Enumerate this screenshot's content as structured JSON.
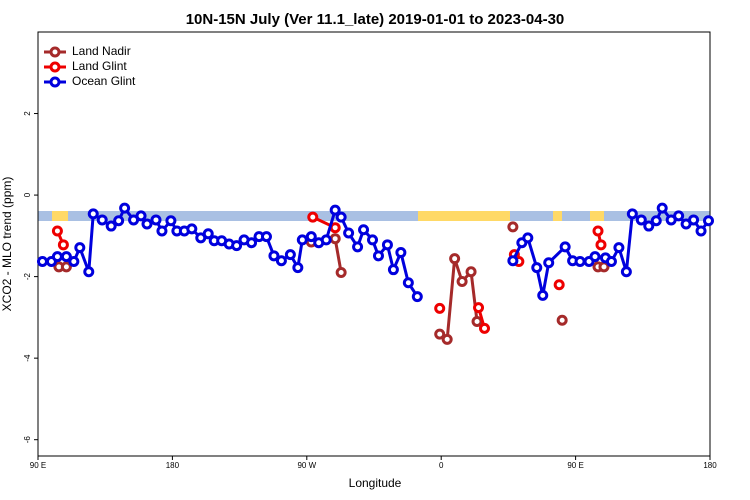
{
  "chart_data": {
    "type": "line",
    "title": "10N-15N July (Ver 11.1_late)   2019-01-01 to 2023-04-30",
    "x_label": "Longitude",
    "y_label": "XCO2 - MLO trend (ppm)",
    "xlim": [
      90,
      540
    ],
    "xticks": [
      {
        "value": 90,
        "label": "90 E"
      },
      {
        "value": 180,
        "label": "180"
      },
      {
        "value": 270,
        "label": "90 W"
      },
      {
        "value": 360,
        "label": "0"
      },
      {
        "value": 450,
        "label": "90 E"
      },
      {
        "value": 540,
        "label": "180"
      }
    ],
    "ylim": [
      -6.4,
      4
    ],
    "yticks": [
      -6,
      -4,
      -2,
      0,
      2
    ],
    "legend": "top-left",
    "series": [
      {
        "name": "Land Nadir",
        "color": "#a52a2a",
        "x": [
          104,
          109,
          null,
          273,
          289,
          293,
          null,
          359,
          364,
          369,
          374,
          380,
          384,
          null,
          408,
          null,
          441,
          null,
          465,
          469
        ],
        "values": [
          -1.76,
          -1.76,
          null,
          -1.15,
          -1.07,
          -1.9,
          null,
          -3.41,
          -3.54,
          -1.56,
          -2.12,
          -1.88,
          -3.1,
          null,
          -0.78,
          null,
          -3.07,
          null,
          -1.76,
          -1.76
        ]
      },
      {
        "name": "Land Glint",
        "color": "#ee0000",
        "x": [
          103,
          107,
          null,
          274,
          289,
          null,
          359,
          null,
          385,
          389,
          null,
          409,
          412,
          null,
          439,
          null,
          465,
          467
        ],
        "values": [
          -0.88,
          -1.22,
          null,
          -0.54,
          -0.8,
          null,
          -2.78,
          null,
          -2.76,
          -3.27,
          null,
          -1.46,
          -1.63,
          null,
          -2.2,
          null,
          -0.88,
          -1.22
        ]
      },
      {
        "name": "Ocean Glint",
        "color": "#0000dd",
        "x": [
          93,
          99,
          103,
          109,
          114,
          118,
          124,
          127,
          133,
          139,
          144,
          148,
          154,
          159,
          163,
          169,
          173,
          179,
          183,
          188,
          193,
          199,
          204,
          208,
          213,
          218,
          223,
          228,
          233,
          238,
          243,
          248,
          253,
          259,
          264,
          267,
          273,
          278,
          283,
          289,
          293,
          298,
          304,
          308,
          314,
          318,
          324,
          328,
          333,
          338,
          344,
          null,
          408,
          414,
          418,
          424,
          428,
          432,
          443,
          448,
          453,
          459,
          463,
          470,
          474,
          479,
          484,
          488,
          494,
          499,
          504,
          508,
          514,
          519,
          524,
          529,
          534,
          539
        ],
        "values": [
          -1.63,
          -1.63,
          -1.51,
          -1.51,
          -1.63,
          -1.29,
          -1.88,
          -0.46,
          -0.61,
          -0.76,
          -0.63,
          -0.32,
          -0.61,
          -0.51,
          -0.71,
          -0.61,
          -0.88,
          -0.63,
          -0.88,
          -0.88,
          -0.83,
          -1.05,
          -0.95,
          -1.12,
          -1.12,
          -1.2,
          -1.24,
          -1.1,
          -1.17,
          -1.02,
          -1.02,
          -1.49,
          -1.61,
          -1.46,
          -1.78,
          -1.1,
          -1.02,
          -1.17,
          -1.1,
          -0.37,
          -0.54,
          -0.93,
          -1.27,
          -0.85,
          -1.1,
          -1.49,
          -1.22,
          -1.83,
          -1.41,
          -2.15,
          -2.49,
          null,
          -1.61,
          -1.17,
          -1.05,
          -1.78,
          -2.46,
          -1.66,
          -1.27,
          -1.61,
          -1.63,
          -1.63,
          -1.51,
          -1.54,
          -1.63,
          -1.29,
          -1.88,
          -0.46,
          -0.61,
          -0.76,
          -0.63,
          -0.32,
          -0.61,
          -0.51,
          -0.71,
          -0.61,
          -0.88,
          -0.63
        ]
      }
    ]
  }
}
